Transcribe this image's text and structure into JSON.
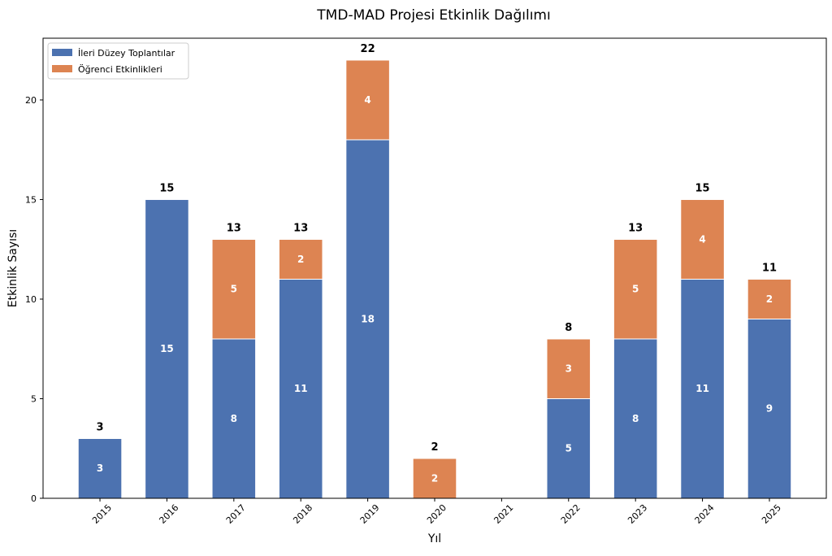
{
  "chart_data": {
    "type": "bar",
    "stacked": true,
    "title": "TMD-MAD Projesi Etkinlik Dağılımı",
    "xlabel": "Yıl",
    "ylabel": "Etkinlik Sayısı",
    "categories": [
      "2015",
      "2016",
      "2017",
      "2018",
      "2019",
      "2020",
      "2021",
      "2022",
      "2023",
      "2024",
      "2025"
    ],
    "series": [
      {
        "name": "İleri Düzey Toplantılar",
        "color": "#4c72b0",
        "values": [
          3,
          15,
          8,
          11,
          18,
          0,
          0,
          5,
          8,
          11,
          9
        ]
      },
      {
        "name": "Öğrenci Etkinlikleri",
        "color": "#dd8452",
        "values": [
          0,
          0,
          5,
          2,
          4,
          2,
          0,
          3,
          5,
          4,
          2
        ]
      }
    ],
    "totals": [
      3,
      15,
      13,
      13,
      22,
      2,
      0,
      8,
      13,
      15,
      11
    ],
    "ylim": [
      0,
      23.1
    ],
    "yticks": [
      0,
      5,
      10,
      15,
      20
    ],
    "grid": false,
    "legend": "top-left",
    "tick_rotation": 45
  }
}
